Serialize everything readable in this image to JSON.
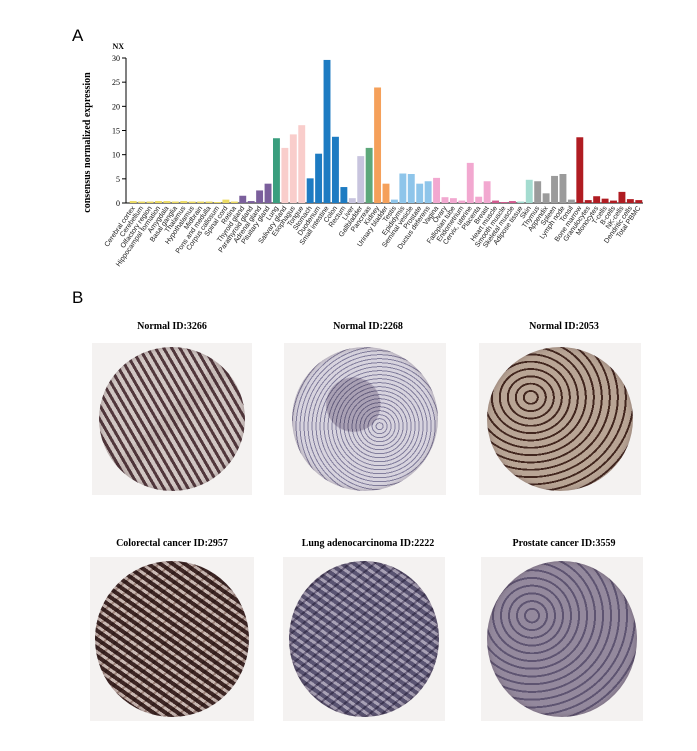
{
  "panels": {
    "a_label": "A",
    "b_label": "B"
  },
  "chart_data": {
    "type": "bar",
    "unit_label": "NX",
    "ylabel": "consensus normalized expression",
    "ylim": [
      0,
      30
    ],
    "yticks": [
      0,
      5,
      10,
      15,
      20,
      25,
      30
    ],
    "grid": false,
    "legend": "none",
    "categories": [
      "Cerebral cortex",
      "Cerebellum",
      "Olfactory region",
      "Hippocampal formation",
      "Amygdala",
      "Basal ganglia",
      "Thalamus",
      "Hypothalamus",
      "Midbrain",
      "Pons and medulla",
      "Corpus callosum",
      "Spinal cord",
      "Retina",
      "Thyroid gland",
      "Parathyroid gland",
      "Adrenal gland",
      "Pituitary gland",
      "Lung",
      "Salivary gland",
      "Esophagus",
      "Tongue",
      "Stomach",
      "Duodenum",
      "Small intestine",
      "Colon",
      "Rectum",
      "Liver",
      "Gallbladder",
      "Pancreas",
      "Kidney",
      "Urinary bladder",
      "Testis",
      "Epididymis",
      "Seminal vesicle",
      "Prostate",
      "Ductus deferens",
      "Vagina",
      "Ovary",
      "Fallopian tube",
      "Endometrium",
      "Cervix, uterine",
      "Placenta",
      "Breast",
      "Heart muscle",
      "Smooth muscle",
      "Skeletal muscle",
      "Adipose tissue",
      "Skin",
      "Thymus",
      "Appendix",
      "Spleen",
      "Lymph node",
      "Tonsil",
      "Bone marrow",
      "Granulocytes",
      "Monocytes",
      "T-cells",
      "B-cells",
      "NK-cells",
      "Dendritic cells",
      "Total PBMC"
    ],
    "values": [
      0.4,
      0.3,
      0.3,
      0.4,
      0.4,
      0.3,
      0.4,
      0.3,
      0.3,
      0.3,
      0.2,
      0.7,
      0.3,
      1.5,
      0.4,
      2.6,
      4.0,
      13.4,
      11.4,
      14.2,
      16.1,
      5.1,
      10.2,
      29.6,
      13.7,
      3.3,
      1.0,
      9.7,
      11.4,
      23.9,
      4.0,
      0.7,
      6.1,
      6.0,
      4.0,
      4.5,
      5.2,
      1.2,
      1.0,
      0.5,
      8.3,
      1.3,
      4.5,
      0.5,
      0.2,
      0.4,
      0.3,
      4.8,
      4.5,
      2.0,
      5.6,
      6.0,
      0.7,
      13.6,
      0.6,
      1.4,
      0.9,
      0.5,
      2.3,
      0.8,
      0.6
    ],
    "colors": [
      "#ecdb62",
      "#ecdb62",
      "#ecdb62",
      "#ecdb62",
      "#ecdb62",
      "#ecdb62",
      "#ecdb62",
      "#ecdb62",
      "#ecdb62",
      "#ecdb62",
      "#ecdb62",
      "#ecdb62",
      "#ecdb62",
      "#7b5f9c",
      "#7b5f9c",
      "#7b5f9c",
      "#7b5f9c",
      "#3a9e7e",
      "#f9cdcb",
      "#f9cdcb",
      "#f9cdcb",
      "#1d7bc2",
      "#1d7bc2",
      "#1d7bc2",
      "#1d7bc2",
      "#1d7bc2",
      "#c8c4de",
      "#c8c4de",
      "#5da87a",
      "#f5a05a",
      "#f5a05a",
      "#8ec5ea",
      "#8ec5ea",
      "#8ec5ea",
      "#8ec5ea",
      "#8ec5ea",
      "#f2a8d0",
      "#f2a8d0",
      "#f2a8d0",
      "#f2a8d0",
      "#f2a8d0",
      "#f2a8d0",
      "#f2a8d0",
      "#d2598e",
      "#d2598e",
      "#d2598e",
      "#a4dcd0",
      "#a4dcd0",
      "#9b9b9b",
      "#9b9b9b",
      "#9b9b9b",
      "#9b9b9b",
      "#9b9b9b",
      "#b01c22",
      "#b01c22",
      "#b01c22",
      "#b01c22",
      "#b01c22",
      "#b01c22",
      "#b01c22",
      "#b01c22"
    ]
  },
  "ihc_images": [
    {
      "caption": "Normal ID:3266",
      "stain": "#5a3f45",
      "bg": "#e7e1df",
      "shape": "split"
    },
    {
      "caption": "Normal ID:2268",
      "stain": "#8e8aa8",
      "bg": "#eae8ee",
      "shape": "lung"
    },
    {
      "caption": "Normal ID:2053",
      "stain": "#4e3028",
      "bg": "#d9cdc3",
      "shape": "glands"
    },
    {
      "caption": "Colorectal cancer ID:2957",
      "stain": "#3d2624",
      "bg": "#c9b8b2",
      "shape": "dense"
    },
    {
      "caption": "Lung adenocarcinoma ID:2222",
      "stain": "#5a5472",
      "bg": "#a8a1b5",
      "shape": "dense"
    },
    {
      "caption": "Prostate cancer ID:3559",
      "stain": "#7b7290",
      "bg": "#c2bbc8",
      "shape": "glands"
    }
  ]
}
